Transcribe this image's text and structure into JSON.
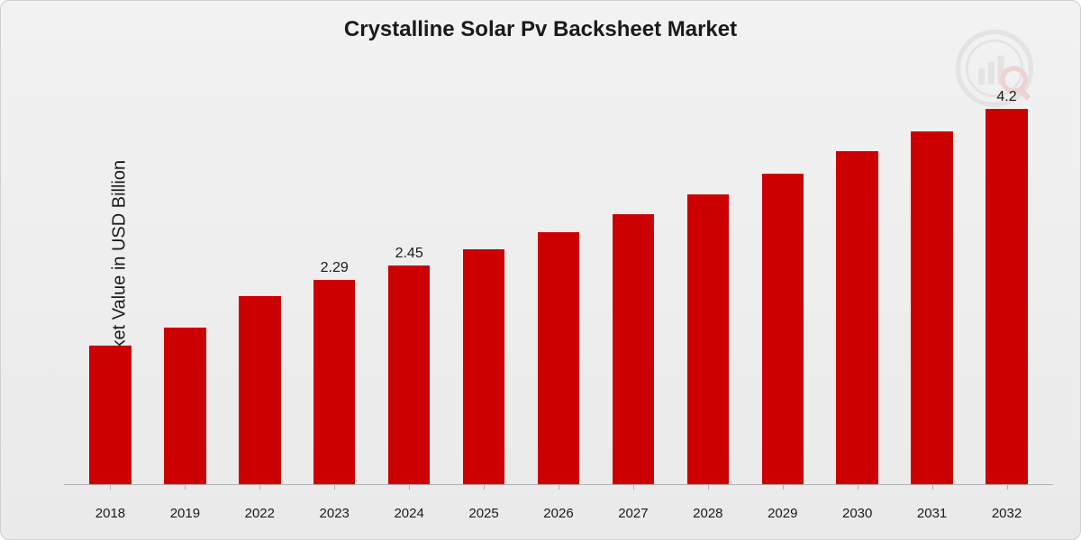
{
  "chart": {
    "type": "bar",
    "title": "Crystalline Solar Pv Backsheet Market",
    "title_fontsize": 24,
    "y_label": "Market Value in USD Billion",
    "y_label_fontsize": 20,
    "background_gradient_top": "#f2f2f2",
    "background_gradient_bottom": "#eaeaea",
    "border_color": "#d0d0d0",
    "axis_color": "#b0b0b0",
    "bar_color": "#cc0000",
    "text_color": "#1a1a1a",
    "ylim": [
      0,
      4.6
    ],
    "bar_width_ratio": 0.56,
    "categories": [
      "2018",
      "2019",
      "2022",
      "2023",
      "2024",
      "2025",
      "2026",
      "2027",
      "2028",
      "2029",
      "2030",
      "2031",
      "2032"
    ],
    "values": [
      1.55,
      1.75,
      2.1,
      2.29,
      2.45,
      2.63,
      2.82,
      3.02,
      3.24,
      3.47,
      3.72,
      3.95,
      4.2
    ],
    "value_labels": [
      "",
      "",
      "",
      "2.29",
      "2.45",
      "",
      "",
      "",
      "",
      "",
      "",
      "",
      "4.2"
    ],
    "label_fontsize": 16,
    "x_label_fontsize": 15
  },
  "watermark": {
    "circle_color": "#888888",
    "accent_color": "#cc0000"
  }
}
